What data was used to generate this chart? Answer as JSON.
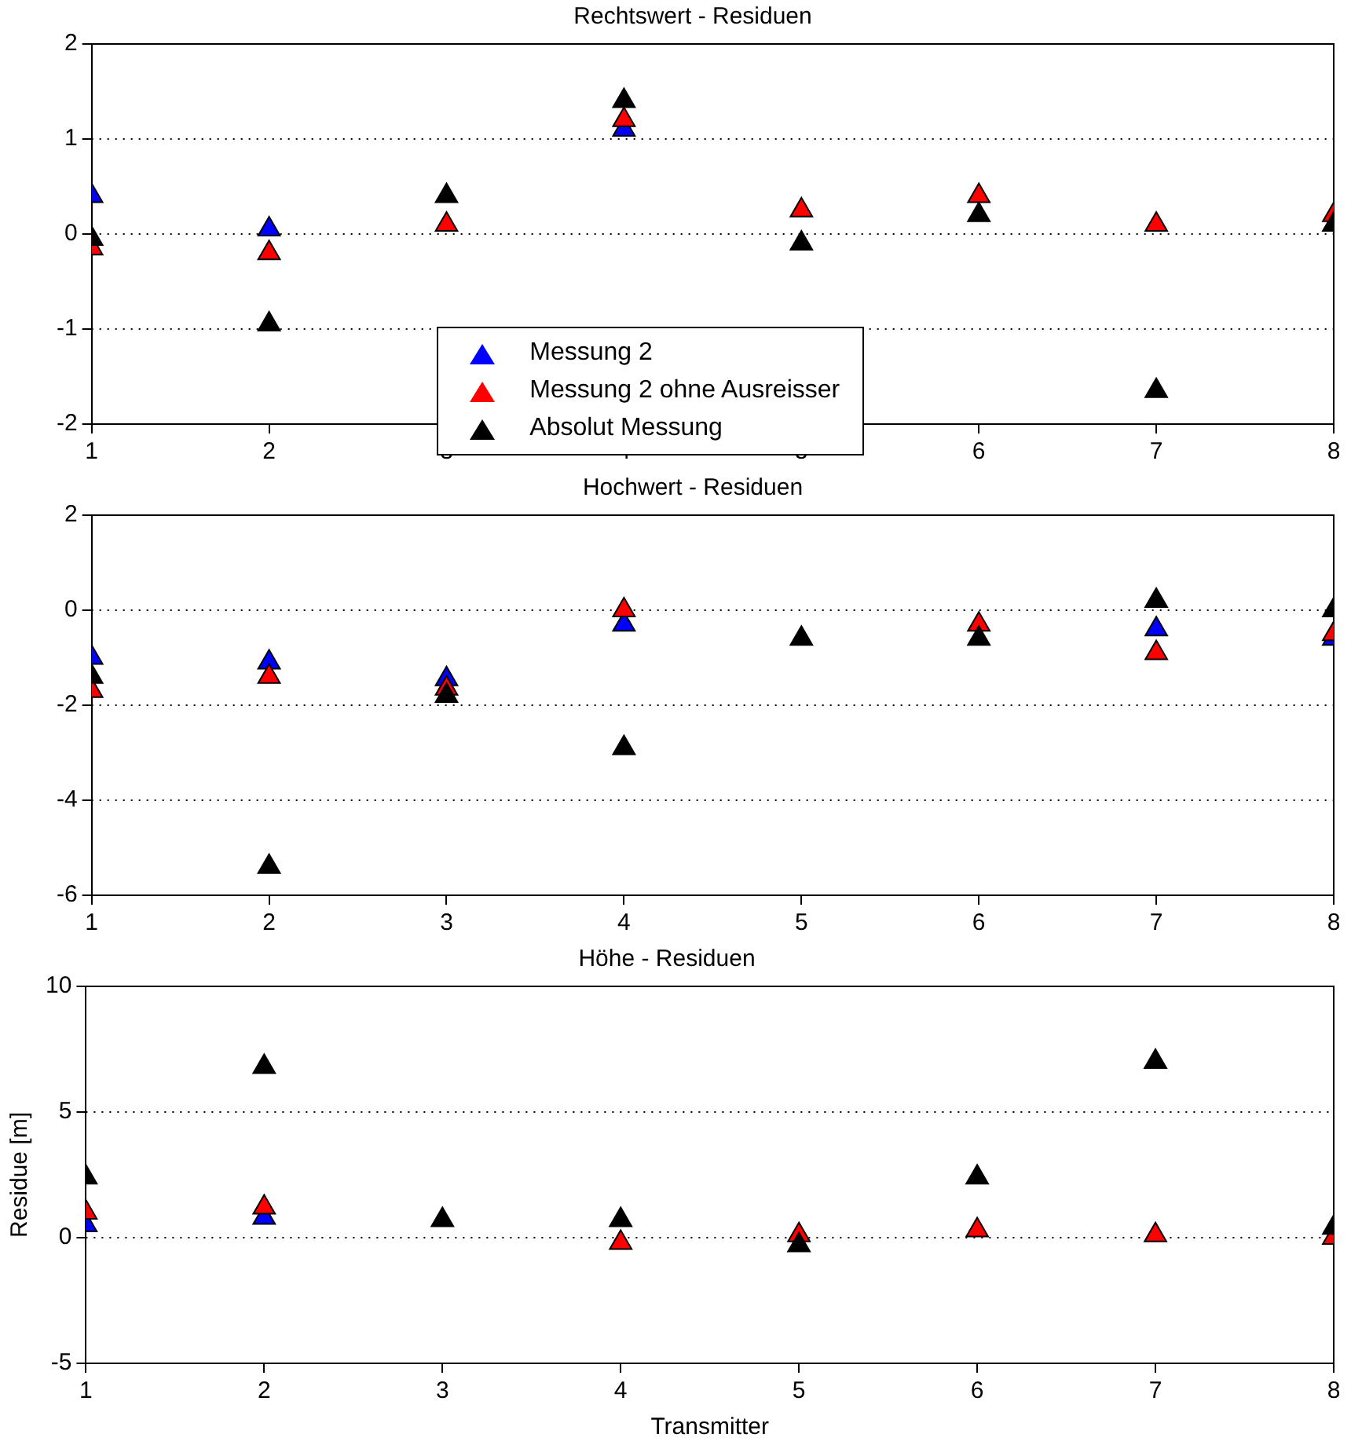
{
  "chart_data": [
    {
      "type": "scatter",
      "title": "Rechtswert - Residuen",
      "x": [
        1,
        2,
        3,
        4,
        5,
        6,
        7,
        8
      ],
      "xlim": [
        1,
        8
      ],
      "xticks": [
        1,
        2,
        3,
        4,
        5,
        6,
        7,
        8
      ],
      "ylim": [
        -2,
        2
      ],
      "yticks": [
        -2,
        -1,
        0,
        1,
        2
      ],
      "grid": "y",
      "marker": "triangle",
      "legend": "bottom",
      "series": [
        {
          "name": "Messung 2",
          "color": "#0000ff",
          "values": [
            0.4,
            0.05,
            null,
            1.1,
            null,
            null,
            null,
            null
          ]
        },
        {
          "name": "Messung 2 ohne Ausreisser",
          "color": "#ff0000",
          "values": [
            -0.15,
            -0.2,
            0.1,
            1.2,
            0.25,
            0.4,
            0.1,
            0.2
          ]
        },
        {
          "name": "Absolut Messung",
          "color": "#000000",
          "values": [
            -0.05,
            -0.95,
            0.4,
            1.4,
            -0.1,
            0.2,
            -1.65,
            0.1
          ]
        }
      ]
    },
    {
      "type": "scatter",
      "title": "Hochwert - Residuen",
      "x": [
        1,
        2,
        3,
        4,
        5,
        6,
        7,
        8
      ],
      "xlim": [
        1,
        8
      ],
      "xticks": [
        1,
        2,
        3,
        4,
        5,
        6,
        7,
        8
      ],
      "ylim": [
        -6,
        2
      ],
      "yticks": [
        -6,
        -4,
        -2,
        0,
        2
      ],
      "grid": "y",
      "marker": "triangle",
      "series": [
        {
          "color": "#0000ff",
          "values": [
            -1.0,
            -1.1,
            -1.45,
            -0.3,
            null,
            null,
            -0.4,
            -0.6
          ]
        },
        {
          "color": "#ff0000",
          "values": [
            -1.7,
            -1.4,
            -1.65,
            0.0,
            null,
            -0.3,
            -0.9,
            -0.5
          ]
        },
        {
          "color": "#000000",
          "values": [
            -1.4,
            -5.4,
            -1.8,
            -2.9,
            -0.6,
            -0.6,
            0.2,
            0.0
          ]
        }
      ]
    },
    {
      "type": "scatter",
      "title": "Höhe - Residuen",
      "xlabel": "Transmitter",
      "ylabel": "Residue [m]",
      "x": [
        1,
        2,
        3,
        4,
        5,
        6,
        7,
        8
      ],
      "xlim": [
        1,
        8
      ],
      "xticks": [
        1,
        2,
        3,
        4,
        5,
        6,
        7,
        8
      ],
      "ylim": [
        -5,
        10
      ],
      "yticks": [
        -5,
        0,
        5,
        10
      ],
      "grid": "y",
      "marker": "triangle",
      "series": [
        {
          "color": "#0000ff",
          "values": [
            0.5,
            0.8,
            null,
            null,
            null,
            null,
            null,
            null
          ]
        },
        {
          "color": "#ff0000",
          "values": [
            1.0,
            1.2,
            null,
            -0.2,
            0.1,
            0.3,
            0.1,
            0.0
          ]
        },
        {
          "color": "#000000",
          "values": [
            2.4,
            6.8,
            0.7,
            0.7,
            -0.3,
            2.4,
            7.0,
            0.4
          ]
        }
      ]
    }
  ]
}
